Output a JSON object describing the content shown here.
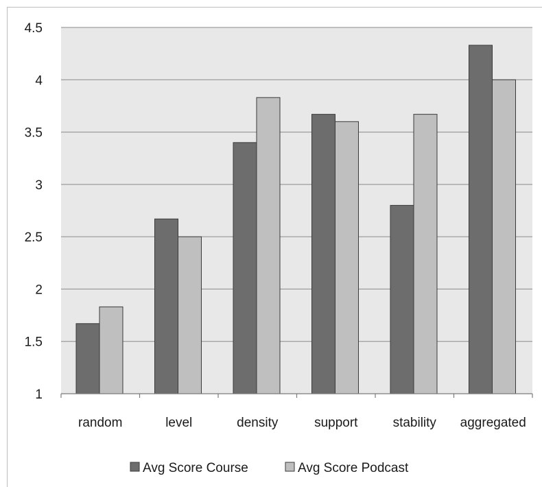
{
  "chart_data": {
    "type": "bar",
    "title": "",
    "xlabel": "",
    "ylabel": "",
    "categories": [
      "random",
      "level",
      "density",
      "support",
      "stability",
      "aggregated"
    ],
    "series": [
      {
        "name": "Avg Score Course",
        "values": [
          1.67,
          2.67,
          3.4,
          3.67,
          2.8,
          4.33
        ],
        "color": "#6d6d6d"
      },
      {
        "name": "Avg Score Podcast",
        "values": [
          1.83,
          2.5,
          3.83,
          3.6,
          3.67,
          4.0
        ],
        "color": "#bfbfbf"
      }
    ],
    "ylim": [
      1,
      4.5
    ],
    "yticks": [
      "1",
      "1.5",
      "2",
      "2.5",
      "3",
      "3.5",
      "4",
      "4.5"
    ],
    "grid": true,
    "legend_position": "bottom",
    "plot_background": "#e8e8e8"
  }
}
